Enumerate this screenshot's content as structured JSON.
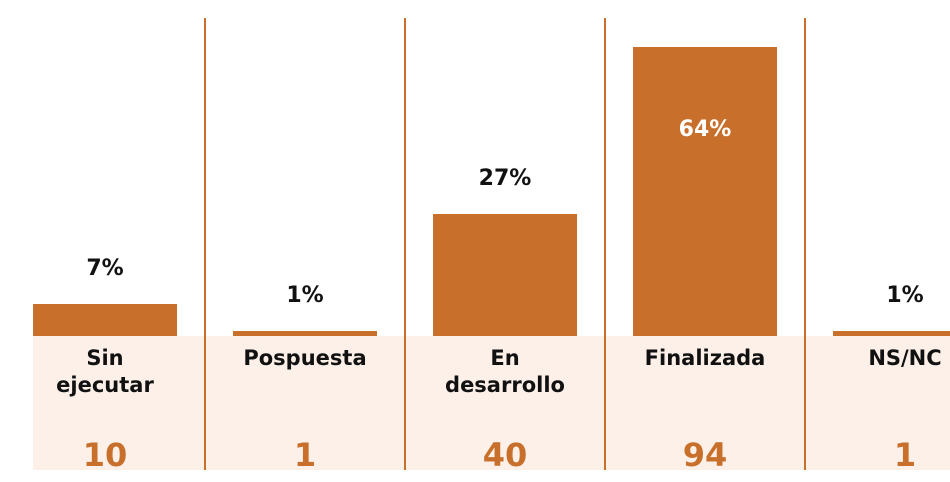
{
  "chart_data": {
    "type": "bar",
    "categories": [
      "Sin ejecutar",
      "Pospuesta",
      "En desarrollo",
      "Finalizada",
      "NS/NC"
    ],
    "values": [
      7,
      1,
      27,
      64,
      1
    ],
    "value_labels": [
      "7%",
      "1%",
      "27%",
      "64%",
      "1%"
    ],
    "counts": [
      10,
      1,
      40,
      94,
      1
    ],
    "color": "#c8702b"
  }
}
